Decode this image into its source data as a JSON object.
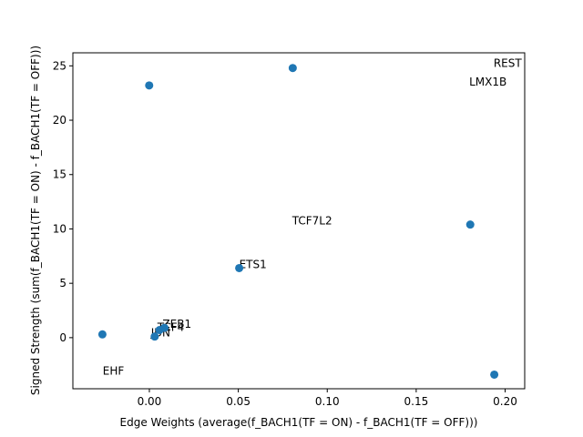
{
  "chart_data": {
    "type": "scatter",
    "title": "",
    "xlabel": "Edge Weights (average(f_BACH1(TF = ON) - f_BACH1(TF = OFF)))",
    "ylabel": "Signed Strength (sum(f_BACH1(TF = ON) - f_BACH1(TF = OFF)))",
    "xlim": [
      -0.043,
      0.211
    ],
    "ylim": [
      -4.7,
      26.2
    ],
    "grid": false,
    "marker_color": "#1f77b4",
    "xticks": [
      {
        "value": 0.0,
        "label": "0.00"
      },
      {
        "value": 0.05,
        "label": "0.05"
      },
      {
        "value": 0.1,
        "label": "0.10"
      },
      {
        "value": 0.15,
        "label": "0.15"
      },
      {
        "value": 0.2,
        "label": "0.20"
      }
    ],
    "yticks": [
      {
        "value": 0,
        "label": "0"
      },
      {
        "value": 5,
        "label": "5"
      },
      {
        "value": 10,
        "label": "10"
      },
      {
        "value": 15,
        "label": "15"
      },
      {
        "value": 20,
        "label": "20"
      },
      {
        "value": 25,
        "label": "25"
      }
    ],
    "points": [
      {
        "x": 0.0806,
        "y": 24.8
      },
      {
        "x": -0.0001,
        "y": 23.2
      },
      {
        "x": 0.1804,
        "y": 10.4
      },
      {
        "x": 0.0505,
        "y": 6.4
      },
      {
        "x": 0.0085,
        "y": 0.9
      },
      {
        "x": 0.0057,
        "y": 0.7
      },
      {
        "x": 0.003,
        "y": 0.1
      },
      {
        "x": -0.0264,
        "y": 0.3
      },
      {
        "x": 0.1939,
        "y": -3.4
      }
    ],
    "annotations": [
      {
        "text": "REST",
        "x": 0.1935,
        "y": 24.9
      },
      {
        "text": "LMX1B",
        "x": 0.1798,
        "y": 23.2
      },
      {
        "text": "TCF7L2",
        "x": 0.0803,
        "y": 10.4
      },
      {
        "text": "ETS1",
        "x": 0.0505,
        "y": 6.4
      },
      {
        "text": "ZEB1",
        "x": 0.0074,
        "y": 0.9
      },
      {
        "text": "TCF4",
        "x": 0.0045,
        "y": 0.6
      },
      {
        "text": "JUN",
        "x": 0.0009,
        "y": 0.1
      },
      {
        "text": "EHF",
        "x": -0.0262,
        "y": -3.4
      }
    ]
  }
}
